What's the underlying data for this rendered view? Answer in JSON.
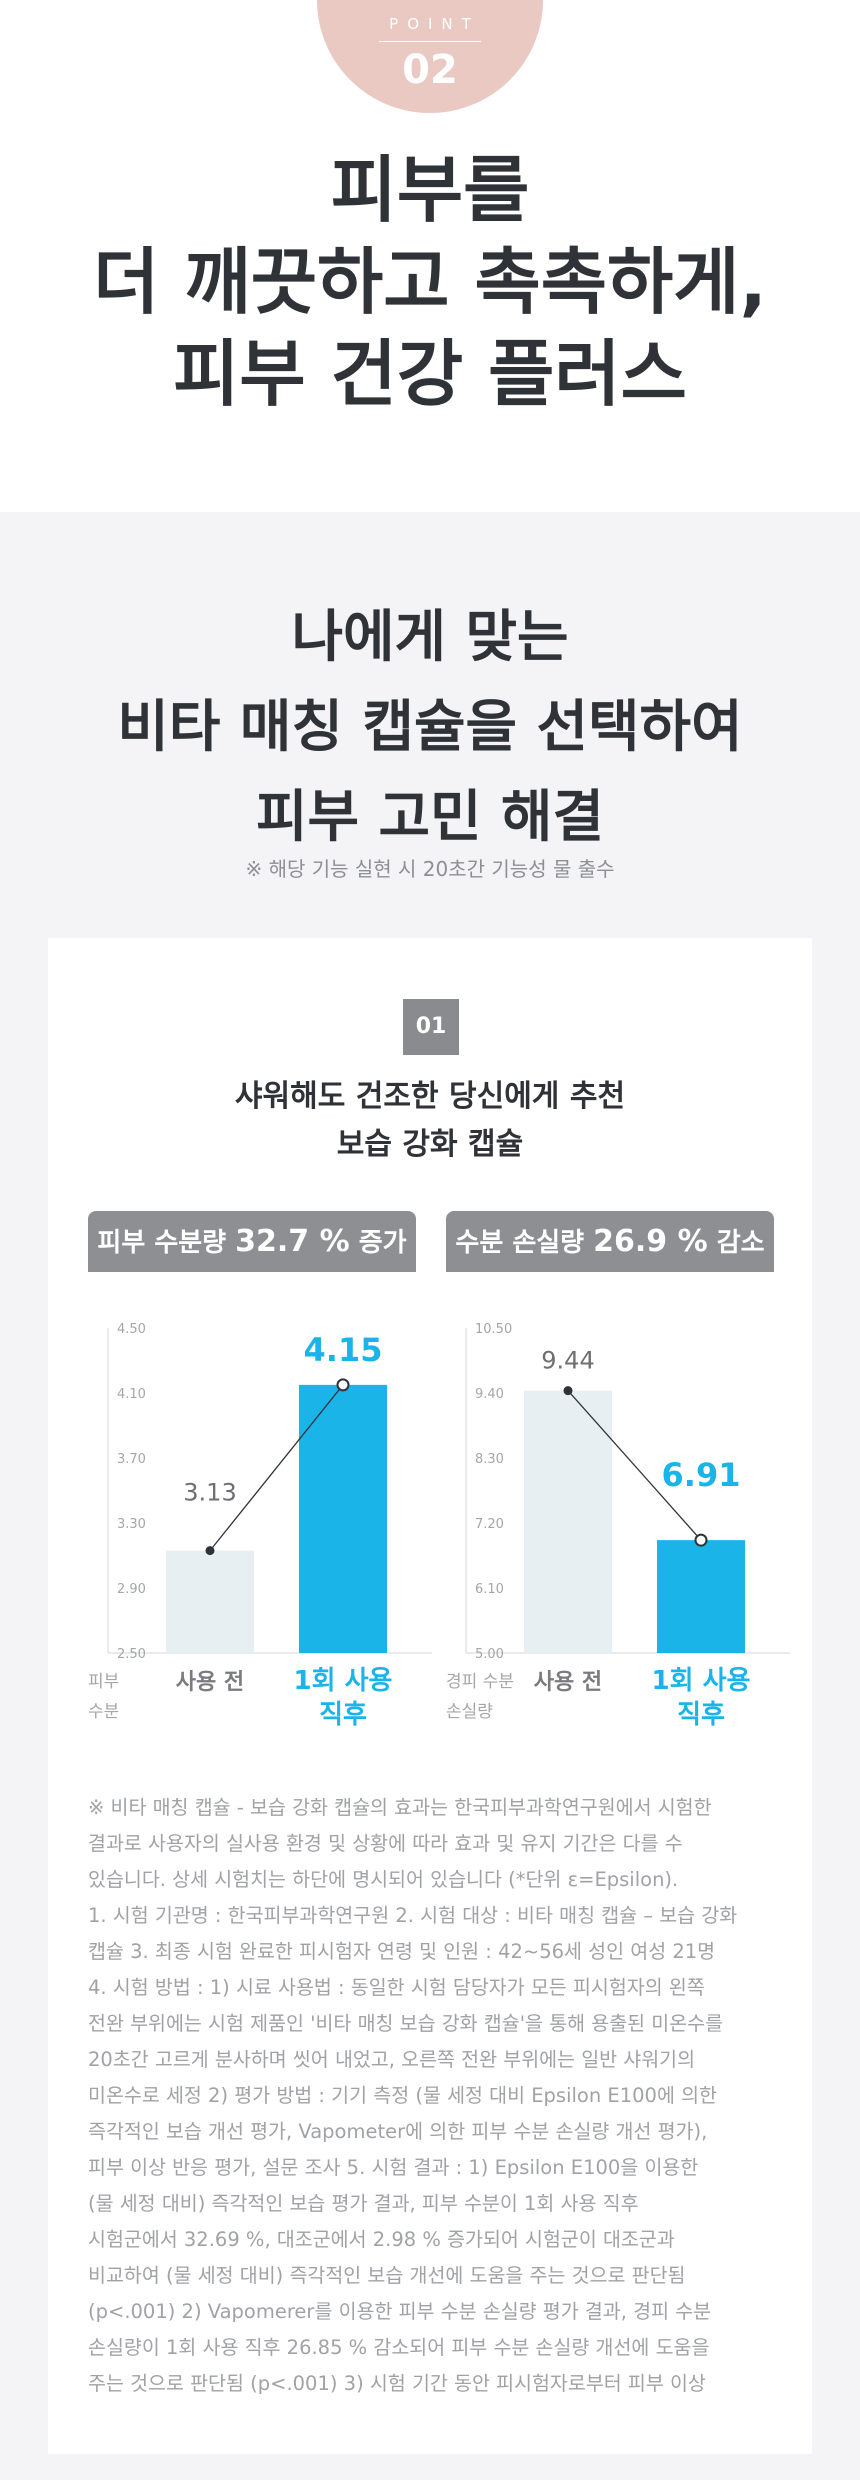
{
  "point": {
    "label": "POINT",
    "number": "02"
  },
  "hero": {
    "title_lines": [
      "피부를",
      "더 깨끗하고 촉촉하게,",
      "피부 건강 플러스"
    ]
  },
  "section": {
    "title_lines": [
      "나에게 맞는",
      "비타 매칭 캡슐을 선택하여",
      "피부 고민 해결"
    ],
    "notice": "※ 해당 기능 실현 시 20초간 기능성 물 출수"
  },
  "card": {
    "number": "01",
    "title_lines": [
      "샤워해도 건조한 당신에게 추천",
      "보습 강화 캡슐"
    ]
  },
  "labels": {
    "left": {
      "prefix": "피부 수분량 ",
      "value": "32.7 %",
      "suffix": " 증가"
    },
    "right": {
      "prefix": "수분 손실량 ",
      "value": "26.9 %",
      "suffix": " 감소"
    }
  },
  "colors": {
    "accent": "#1ab4e8",
    "bar_before": "#e8eff3",
    "badge": "#e9c9c2",
    "label_box": "#8e8f93",
    "section_bg": "#f4f4f6"
  },
  "chart_data": [
    {
      "type": "bar",
      "categories": [
        "사용 전",
        "1회 사용 직후"
      ],
      "category_lines": [
        [
          "사용 전"
        ],
        [
          "1회 사용",
          "직후"
        ]
      ],
      "values": [
        3.13,
        4.15
      ],
      "value_labels": [
        "3.13",
        "4.15"
      ],
      "yticks": [
        "2.50",
        "2.90",
        "3.30",
        "3.70",
        "4.10",
        "4.50"
      ],
      "ylim": [
        2.5,
        4.5
      ],
      "ylabel_lines": [
        "피부",
        "수분"
      ],
      "overlay_line": true,
      "grid": false
    },
    {
      "type": "bar",
      "categories": [
        "사용 전",
        "1회 사용 직후"
      ],
      "category_lines": [
        [
          "사용 전"
        ],
        [
          "1회 사용",
          "직후"
        ]
      ],
      "values": [
        9.44,
        6.91
      ],
      "value_labels": [
        "9.44",
        "6.91"
      ],
      "yticks": [
        "5.00",
        "6.10",
        "7.20",
        "8.30",
        "9.40",
        "10.50"
      ],
      "ylim": [
        5.0,
        10.5
      ],
      "ylabel_lines": [
        "경피 수분",
        "손실량"
      ],
      "overlay_line": true,
      "grid": false
    }
  ],
  "footnote_lines": [
    "※ 비타 매칭 캡슐 - 보습 강화 캡슐의 효과는 한국피부과학연구원에서 시험한",
    "결과로 사용자의 실사용 환경 및 상황에 따라 효과 및 유지 기간은 다를 수",
    "있습니다. 상세 시험치는 하단에 명시되어 있습니다 (*단위 ε=Epsilon).",
    "1. 시험 기관명 : 한국피부과학연구원 2. 시험 대상 : 비타 매칭 캡슐 – 보습 강화",
    "캡슐 3. 최종 시험 완료한 피시험자 연령 및 인원 : 42~56세 성인 여성 21명",
    "4. 시험 방법 : 1) 시료 사용법 : 동일한 시험 담당자가 모든 피시험자의 왼쪽",
    "전완 부위에는 시험 제품인 '비타 매칭 보습 강화 캡슐'을 통해 용출된 미온수를",
    "20초간 고르게 분사하며 씻어 내었고, 오른쪽 전완 부위에는 일반 샤워기의",
    "미온수로 세정 2) 평가 방법 : 기기 측정 (물 세정 대비 Epsilon E100에 의한",
    "즉각적인 보습 개선 평가, Vapometer에 의한 피부 수분 손실량 개선 평가),",
    "피부 이상 반응 평가, 설문 조사 5. 시험 결과 : 1) Epsilon E100을 이용한",
    "(물 세정 대비) 즉각적인 보습 평가 결과, 피부 수분이 1회 사용 직후",
    "시험군에서 32.69 %, 대조군에서 2.98 % 증가되어 시험군이 대조군과",
    "비교하여 (물 세정 대비) 즉각적인 보습 개선에 도움을 주는 것으로 판단됨",
    "(p<.001) 2) Vapomerer를 이용한 피부 수분 손실량 평가 결과, 경피 수분",
    "손실량이 1회 사용 직후 26.85 % 감소되어 피부 수분 손실량 개선에 도움을",
    "주는 것으로 판단됨 (p<.001) 3) 시험 기간 동안 피시험자로부터 피부 이상"
  ]
}
